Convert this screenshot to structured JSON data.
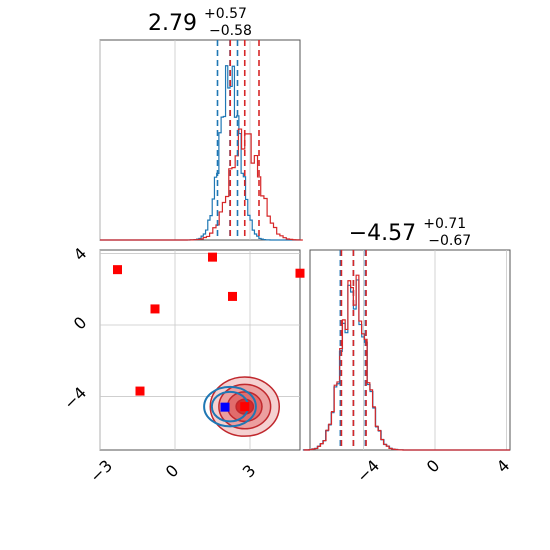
{
  "chart_data": {
    "type": "corner",
    "parameters": 2,
    "panel_titles": [
      {
        "main": "2.79",
        "sup": "+0.57",
        "sub": "−0.58"
      },
      {
        "main": "−4.57",
        "sup": "+0.71",
        "sub": "−0.67"
      }
    ],
    "x_ticks": {
      "param1": [
        "−3",
        "0",
        "3"
      ],
      "param2": [
        "−4",
        "0",
        "4"
      ]
    },
    "y_ticks": {
      "param2": [
        "4",
        "0",
        "−4"
      ]
    },
    "ranges": {
      "param1": [
        -3.0,
        5.0
      ],
      "param2": [
        -7.0,
        4.2
      ]
    },
    "grid": true,
    "series": [
      {
        "color": "#1f77b4",
        "hist1": {
          "bin_start": -3.0,
          "bin_width": 0.1,
          "counts": [
            0,
            0,
            0,
            0,
            0,
            0,
            0,
            0,
            0,
            0,
            0,
            0,
            0,
            0,
            0,
            0,
            0,
            0,
            0,
            0,
            0,
            0,
            0,
            0,
            0,
            0,
            0,
            0,
            0,
            0,
            0,
            0,
            0,
            0,
            0,
            0,
            0,
            0,
            0,
            0,
            0,
            0,
            0,
            0,
            0,
            0,
            0,
            0,
            0,
            0,
            0,
            0,
            0,
            0,
            0,
            0,
            0,
            0,
            0,
            0,
            0,
            0,
            0,
            0,
            0,
            0,
            0,
            0,
            0,
            0,
            0,
            0,
            0,
            0,
            0,
            0,
            0,
            0,
            0,
            0,
            0,
            0,
            0,
            0,
            0,
            0,
            0,
            0,
            0,
            0,
            0,
            0,
            0,
            0,
            0,
            0,
            0,
            0,
            0,
            0,
            0,
            0,
            0,
            0,
            0,
            0,
            0,
            0,
            0,
            0,
            0,
            0,
            0,
            0,
            0,
            0,
            0,
            0,
            0,
            0,
            0,
            0,
            0,
            0,
            0,
            0,
            0,
            0,
            0,
            0,
            0,
            0,
            0,
            0,
            0,
            0,
            0,
            0,
            0,
            0,
            0,
            0,
            0,
            0,
            0,
            0,
            0,
            0,
            0,
            0
          ],
          "quantiles": [
            1.7,
            2.2,
            2.5
          ]
        },
        "hist2": {
          "quantiles": [
            -5.3,
            -4.57,
            -3.9
          ]
        }
      },
      {
        "color": "#d62728",
        "hist1": {
          "quantiles": [
            2.21,
            2.79,
            3.36
          ]
        },
        "hist2": {
          "quantiles": [
            -5.24,
            -4.57,
            -3.86
          ]
        }
      }
    ],
    "markers": [
      {
        "x": -2.3,
        "y": 3.1,
        "color": "#ff0000"
      },
      {
        "x": 1.5,
        "y": 3.8,
        "color": "#ff0000"
      },
      {
        "x": 2.3,
        "y": 1.6,
        "color": "#ff0000"
      },
      {
        "x": -0.8,
        "y": 0.9,
        "color": "#ff0000"
      },
      {
        "x": -1.4,
        "y": -3.7,
        "color": "#ff0000"
      },
      {
        "x": 5.0,
        "y": 2.9,
        "color": "#ff0000"
      },
      {
        "x": 2.79,
        "y": -4.57,
        "color": "#ff0000"
      },
      {
        "x": 2.0,
        "y": -4.6,
        "color": "#0000ff"
      }
    ]
  }
}
